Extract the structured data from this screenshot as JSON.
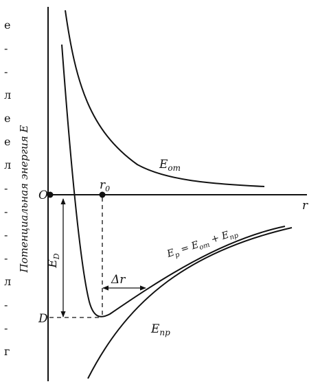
{
  "diagram": {
    "y_axis_label": "Потенциальная энергия E",
    "x_axis_label": "r",
    "origin_label": "O",
    "r0_label": {
      "main": "r",
      "sub": "0"
    },
    "d_label": "D",
    "ed_label": {
      "main": "E",
      "sub": "D"
    },
    "delta_r_label": "Δr",
    "e_repulsion_label": {
      "main": "E",
      "sub": "от"
    },
    "e_attraction_label": {
      "main": "E",
      "sub": "пр"
    },
    "e_result_label": {
      "main": "E",
      "sub": "р",
      "rest": " = E",
      "sub2": "от",
      "rest2": " + E",
      "sub3": "пр"
    },
    "margin_fragments": [
      "е",
      "-",
      "-",
      "л",
      "е",
      "е",
      "л",
      "-",
      "-",
      "-",
      "-",
      "л",
      "-",
      "-",
      "г"
    ]
  }
}
